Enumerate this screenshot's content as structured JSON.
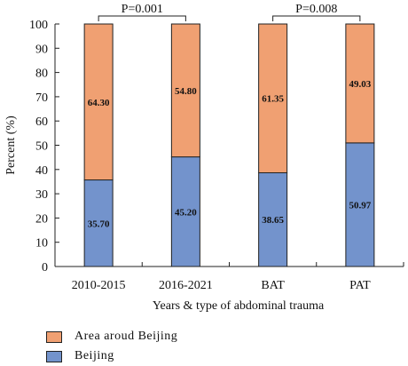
{
  "chart_data": {
    "type": "bar",
    "stacked": true,
    "categories": [
      "2010-2015",
      "2016-2021",
      "BAT",
      "PAT"
    ],
    "series": [
      {
        "name": "Beijing",
        "color": "#7393cc",
        "values": [
          35.7,
          45.2,
          38.65,
          50.97
        ],
        "labels": [
          "35.70",
          "45.20",
          "38.65",
          "50.97"
        ]
      },
      {
        "name": "Area aroud Beijing",
        "color": "#f0a072",
        "values": [
          64.3,
          54.8,
          61.35,
          49.03
        ],
        "labels": [
          "64.30",
          "54.80",
          "61.35",
          "49.03"
        ]
      }
    ],
    "xlabel": "Years & type of abdominal trauma",
    "ylabel": "Percent (%)",
    "ylim": [
      0,
      100
    ],
    "yticks": [
      0,
      10,
      20,
      30,
      40,
      50,
      60,
      70,
      80,
      90,
      100
    ],
    "significance": [
      {
        "from": 0,
        "to": 1,
        "label": "P=0.001"
      },
      {
        "from": 2,
        "to": 3,
        "label": "P=0.008"
      }
    ],
    "legend_position": "bottom-left",
    "grid": false
  },
  "legend": {
    "items": [
      {
        "label": "Area aroud Beijing",
        "color": "#f0a072"
      },
      {
        "label": "Beijing",
        "color": "#7393cc"
      }
    ]
  }
}
